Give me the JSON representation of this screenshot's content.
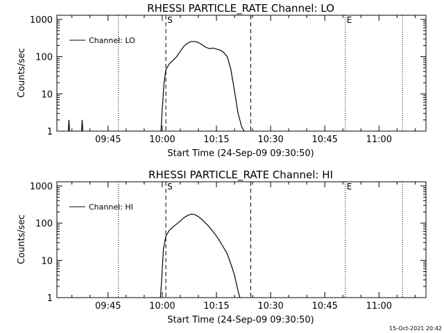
{
  "chart_data": [
    {
      "type": "line",
      "title": "RHESSI PARTICLE_RATE Channel: LO",
      "xlabel": "Start Time (24-Sep-09 09:30:50)",
      "ylabel": "Counts/sec",
      "xlim": [
        "09:30:50",
        "11:13:00"
      ],
      "ylim": [
        1,
        1000
      ],
      "y_scale": "log",
      "x_ticks": [
        "09:45",
        "10:00",
        "10:15",
        "10:30",
        "10:45",
        "11:00"
      ],
      "y_ticks": [
        "1",
        "10",
        "100",
        "1000"
      ],
      "legend": {
        "position": "top-left",
        "entries": [
          "Channel: LO"
        ]
      },
      "grid": false,
      "vertical_markers": [
        {
          "time": "09:47:50",
          "style": "dotted",
          "label": ""
        },
        {
          "time": "10:01:00",
          "style": "dashed",
          "label": "S"
        },
        {
          "time": "10:24:30",
          "style": "dashed",
          "label": ""
        },
        {
          "time": "10:50:40",
          "style": "dotted",
          "label": "E"
        },
        {
          "time": "11:06:30",
          "style": "dotted",
          "label": ""
        }
      ],
      "series": [
        {
          "name": "Channel: LO",
          "x": [
            "09:34:00",
            "09:34:10",
            "09:34:20",
            "09:37:40",
            "09:37:50",
            "09:38:00",
            "09:59:40",
            "10:00:00",
            "10:00:30",
            "10:01:00",
            "10:02:00",
            "10:03:00",
            "10:04:00",
            "10:05:00",
            "10:06:00",
            "10:07:00",
            "10:08:00",
            "10:09:00",
            "10:10:00",
            "10:11:00",
            "10:12:00",
            "10:13:00",
            "10:14:00",
            "10:15:00",
            "10:16:00",
            "10:17:00",
            "10:18:00",
            "10:19:00",
            "10:20:00",
            "10:21:00",
            "10:22:00",
            "10:22:40"
          ],
          "y": [
            1,
            2,
            1,
            1,
            2,
            1,
            1,
            4,
            20,
            45,
            65,
            80,
            100,
            140,
            190,
            230,
            255,
            255,
            240,
            210,
            180,
            165,
            170,
            160,
            150,
            130,
            100,
            45,
            12,
            3,
            1.3,
            1
          ]
        }
      ]
    },
    {
      "type": "line",
      "title": "RHESSI PARTICLE_RATE Channel: HI",
      "xlabel": "Start Time (24-Sep-09 09:30:50)",
      "ylabel": "Counts/sec",
      "xlim": [
        "09:30:50",
        "11:13:00"
      ],
      "ylim": [
        1,
        1000
      ],
      "y_scale": "log",
      "x_ticks": [
        "09:45",
        "10:00",
        "10:15",
        "10:30",
        "10:45",
        "11:00"
      ],
      "y_ticks": [
        "1",
        "10",
        "100",
        "1000"
      ],
      "legend": {
        "position": "top-left",
        "entries": [
          "Channel: HI"
        ]
      },
      "grid": false,
      "vertical_markers": [
        {
          "time": "09:47:50",
          "style": "dotted",
          "label": ""
        },
        {
          "time": "10:01:00",
          "style": "dashed",
          "label": "S"
        },
        {
          "time": "10:24:30",
          "style": "dashed",
          "label": ""
        },
        {
          "time": "10:50:40",
          "style": "dotted",
          "label": "E"
        },
        {
          "time": "11:06:30",
          "style": "dotted",
          "label": ""
        }
      ],
      "series": [
        {
          "name": "Channel: HI",
          "x": [
            "09:59:30",
            "09:59:50",
            "10:00:20",
            "10:01:00",
            "10:02:00",
            "10:03:00",
            "10:04:00",
            "10:05:00",
            "10:06:00",
            "10:07:00",
            "10:08:00",
            "10:09:00",
            "10:10:00",
            "10:11:00",
            "10:12:00",
            "10:13:00",
            "10:14:00",
            "10:15:00",
            "10:16:00",
            "10:17:00",
            "10:18:00",
            "10:19:00",
            "10:20:00",
            "10:21:00",
            "10:21:30"
          ],
          "y": [
            1,
            3,
            20,
            45,
            65,
            80,
            95,
            115,
            140,
            160,
            175,
            170,
            150,
            125,
            100,
            80,
            60,
            45,
            32,
            22,
            15,
            8,
            4,
            1.5,
            1
          ]
        }
      ]
    }
  ],
  "footer": {
    "timestamp": "15-Oct-2021 20:42"
  }
}
